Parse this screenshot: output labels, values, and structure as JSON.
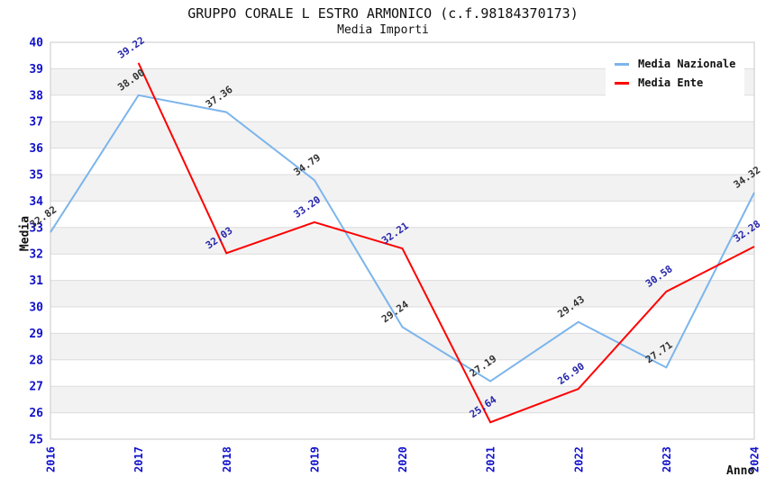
{
  "title": "GRUPPO CORALE L ESTRO ARMONICO (c.f.98184370173)",
  "subtitle": "Media Importi",
  "legend": {
    "items": [
      {
        "label": "Media Nazionale",
        "color": "#7CB5EC"
      },
      {
        "label": "Media Ente",
        "color": "#FF0000"
      }
    ]
  },
  "chart_data": {
    "type": "line",
    "title": "GRUPPO CORALE L ESTRO ARMONICO (c.f.98184370173)",
    "subtitle": "Media Importi",
    "xlabel": "Anno",
    "ylabel": "Media",
    "x": [
      2016,
      2017,
      2018,
      2019,
      2020,
      2021,
      2022,
      2023,
      2024
    ],
    "x_tick_labels": [
      "2016",
      "2017",
      "2018",
      "2019",
      "2020",
      "2021",
      "2022",
      "2023",
      "2024"
    ],
    "ylim": [
      25,
      40
    ],
    "y_ticks": [
      25,
      26,
      27,
      28,
      29,
      30,
      31,
      32,
      33,
      34,
      35,
      36,
      37,
      38,
      39,
      40
    ],
    "grid": true,
    "legend_position": "top-right",
    "series": [
      {
        "name": "Media Nazionale",
        "color": "#7CB5EC",
        "label_color": "#333333",
        "x": [
          2016,
          2017,
          2018,
          2019,
          2020,
          2021,
          2022,
          2023,
          2024
        ],
        "values": [
          32.82,
          38.0,
          37.36,
          34.79,
          29.24,
          27.19,
          29.43,
          27.71,
          34.32
        ]
      },
      {
        "name": "Media Ente",
        "color": "#FF0000",
        "label_color": "#2525AD",
        "x": [
          2017,
          2018,
          2019,
          2020,
          2021,
          2022,
          2023,
          2024
        ],
        "values": [
          39.22,
          32.03,
          33.2,
          32.21,
          25.64,
          26.9,
          30.58,
          32.28
        ]
      }
    ],
    "style": {
      "band_colors": [
        "#ffffff",
        "#f2f2f2"
      ],
      "gridline_color": "#dcdcdc",
      "plot_border_color": "#c9c9c9",
      "tick_label_color": "#1111CC"
    }
  }
}
